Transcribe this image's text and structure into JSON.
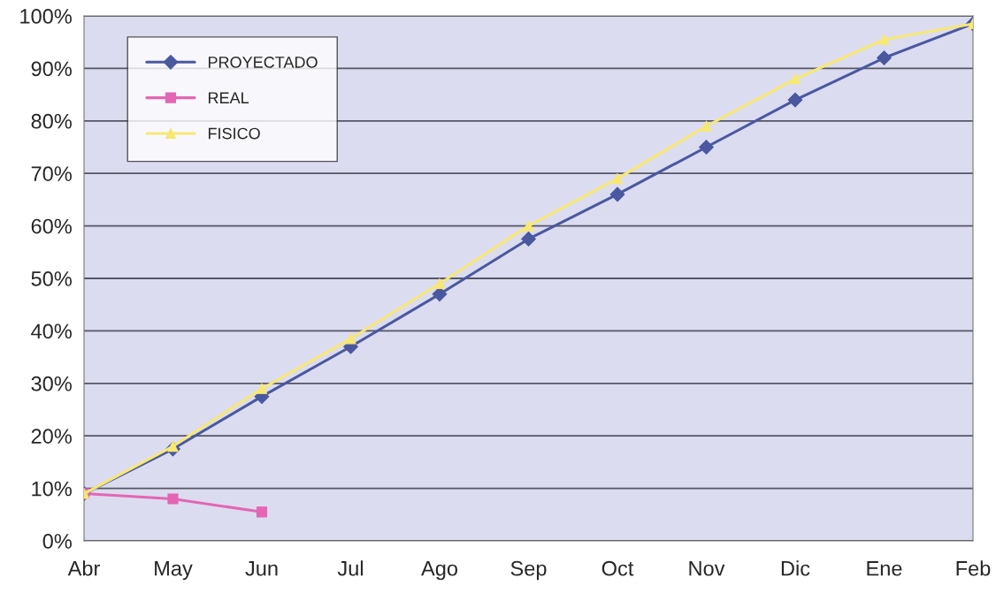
{
  "chart_data": {
    "type": "line",
    "categories": [
      "Abr",
      "May",
      "Jun",
      "Jul",
      "Ago",
      "Sep",
      "Oct",
      "Nov",
      "Dic",
      "Ene",
      "Feb"
    ],
    "series": [
      {
        "name": "PROYECTADO",
        "color": "#4a58a0",
        "marker": "diamond",
        "values": [
          9,
          17.5,
          27.5,
          37,
          47,
          57.5,
          66,
          75,
          84,
          92,
          98.5
        ]
      },
      {
        "name": "REAL",
        "color": "#e366b4",
        "marker": "square",
        "values": [
          9,
          8,
          5.5,
          null,
          null,
          null,
          null,
          null,
          null,
          null,
          null
        ]
      },
      {
        "name": "FISICO",
        "color": "#f7e873",
        "marker": "triangle",
        "values": [
          9,
          18,
          29,
          38.5,
          49,
          60,
          69,
          79,
          88,
          95.5,
          98.5
        ]
      }
    ],
    "ylim": [
      0,
      100
    ],
    "yticks": [
      {
        "value": 0,
        "label": "0%"
      },
      {
        "value": 10,
        "label": "10%"
      },
      {
        "value": 20,
        "label": "20%"
      },
      {
        "value": 30,
        "label": "30%"
      },
      {
        "value": 40,
        "label": "40%"
      },
      {
        "value": 50,
        "label": "50%"
      },
      {
        "value": 60,
        "label": "60%"
      },
      {
        "value": 70,
        "label": "70%"
      },
      {
        "value": 80,
        "label": "80%"
      },
      {
        "value": 90,
        "label": "90%"
      },
      {
        "value": 100,
        "label": "100%"
      }
    ],
    "grid": "y",
    "legend": "top left",
    "line_style": "solid"
  }
}
